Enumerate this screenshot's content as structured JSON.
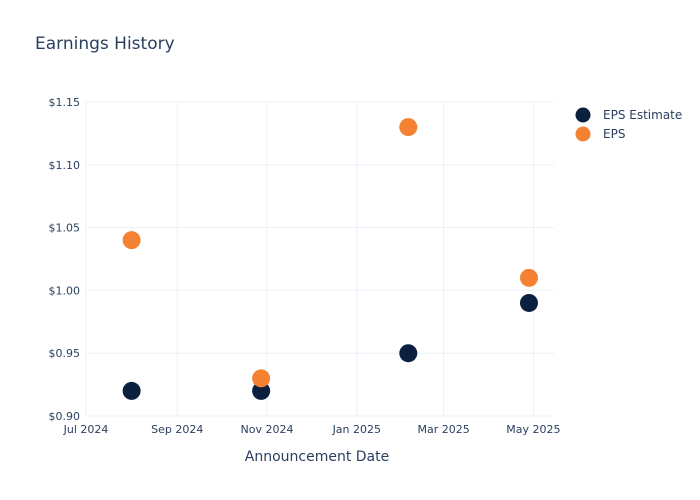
{
  "chart_data": {
    "type": "scatter",
    "title": "Earnings History",
    "xlabel": "Announcement Date",
    "ylabel": "",
    "x_axis_type": "date",
    "xlim": [
      "2024-07-01",
      "2025-05-15"
    ],
    "xticks": [
      {
        "date": "2024-07-01",
        "label": "Jul 2024"
      },
      {
        "date": "2024-09-01",
        "label": "Sep 2024"
      },
      {
        "date": "2024-11-01",
        "label": "Nov 2024"
      },
      {
        "date": "2025-01-01",
        "label": "Jan 2025"
      },
      {
        "date": "2025-03-01",
        "label": "Mar 2025"
      },
      {
        "date": "2025-05-01",
        "label": "May 2025"
      }
    ],
    "ylim": [
      0.9,
      1.15
    ],
    "yticks": [
      {
        "value": 0.9,
        "label": "$0.90"
      },
      {
        "value": 0.95,
        "label": "$0.95"
      },
      {
        "value": 1.0,
        "label": "$1.00"
      },
      {
        "value": 1.05,
        "label": "$1.05"
      },
      {
        "value": 1.1,
        "label": "$1.10"
      },
      {
        "value": 1.15,
        "label": "$1.15"
      }
    ],
    "grid": true,
    "legend_position": "top-right",
    "x": [
      "2024-08-01",
      "2024-10-28",
      "2025-02-05",
      "2025-04-28"
    ],
    "series": [
      {
        "name": "EPS Estimate",
        "color": "#0b1f3f",
        "values": [
          0.92,
          0.92,
          0.95,
          0.99
        ]
      },
      {
        "name": "EPS",
        "color": "#f58232",
        "values": [
          1.04,
          0.93,
          1.13,
          1.01
        ]
      }
    ]
  }
}
